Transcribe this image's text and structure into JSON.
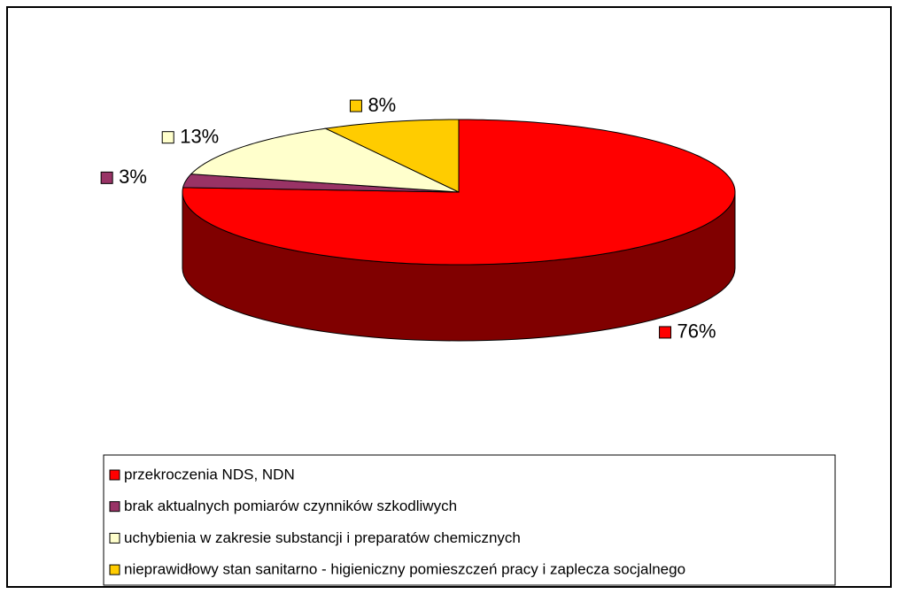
{
  "chart_data": {
    "type": "pie",
    "categories": [
      "przekroczenia NDS, NDN",
      "brak aktualnych pomiarów czynników szkodliwych",
      "uchybienia w zakresie substancji i preparatów chemicznych",
      "nieprawidłowy stan sanitarno - higieniczny pomieszczeń pracy i zaplecza socjalnego"
    ],
    "values": [
      76,
      3,
      13,
      8
    ],
    "value_labels": [
      "76%",
      "3%",
      "13%",
      "8%"
    ],
    "colors": [
      "#ff0000",
      "#993366",
      "#ffffcc",
      "#ffcc00"
    ],
    "legend": "bottom"
  }
}
